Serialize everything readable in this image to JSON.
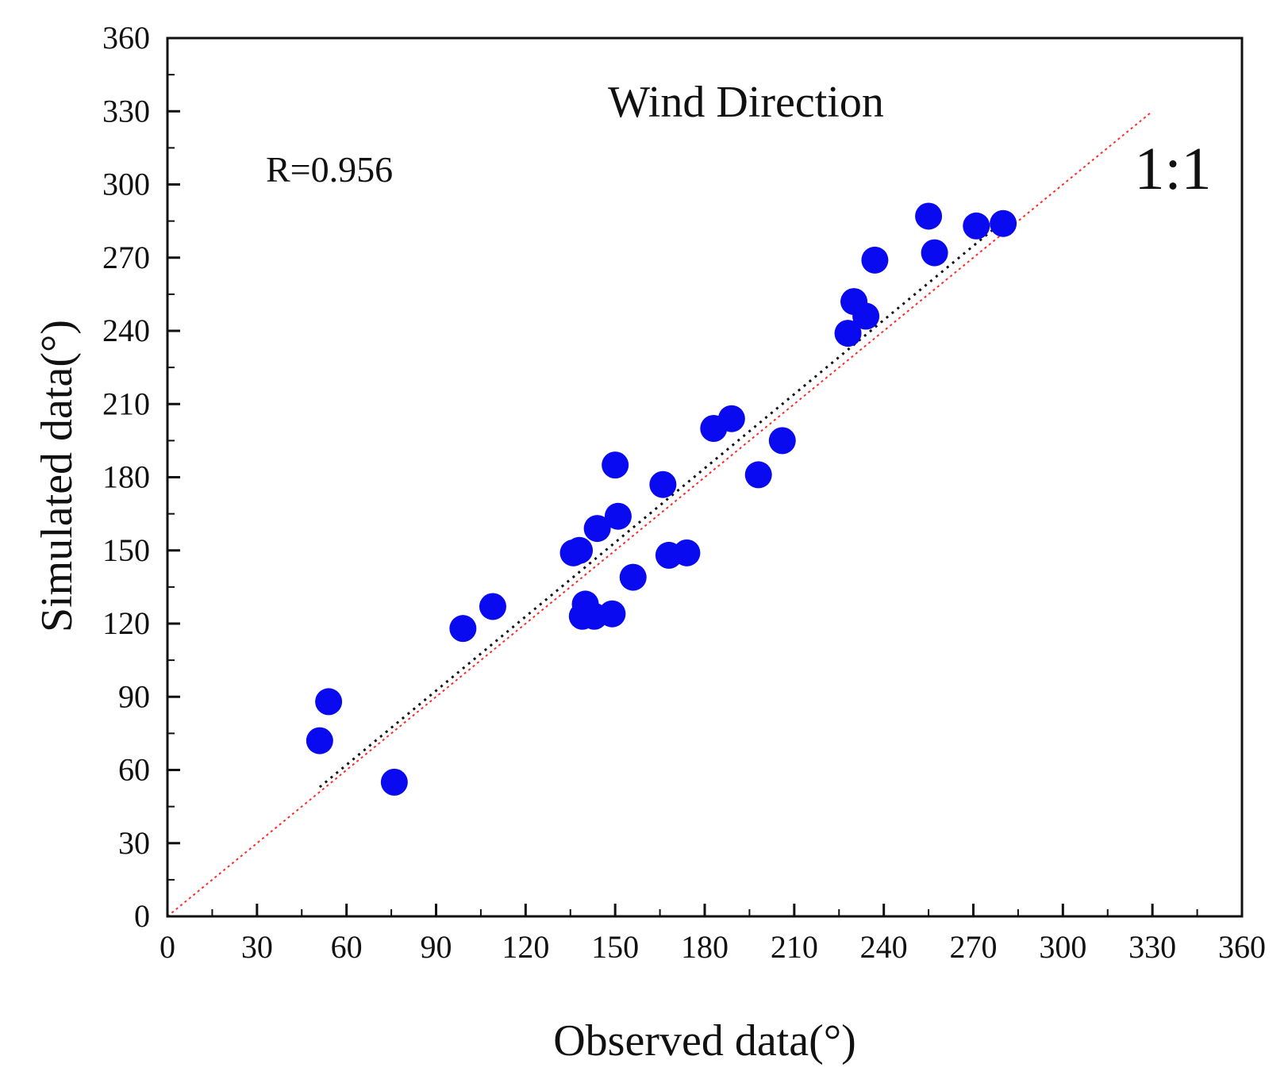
{
  "chart_data": {
    "type": "scatter",
    "title": "Wind Direction",
    "xlabel": "Observed data(°)",
    "ylabel": "Simulated data(°)",
    "xlim": [
      0,
      360
    ],
    "ylim": [
      0,
      360
    ],
    "xticks": [
      "0",
      "30",
      "60",
      "90",
      "120",
      "150",
      "180",
      "210",
      "240",
      "270",
      "300",
      "330",
      "360"
    ],
    "yticks": [
      "0",
      "30",
      "60",
      "90",
      "120",
      "150",
      "180",
      "210",
      "240",
      "270",
      "300",
      "330",
      "360"
    ],
    "grid": false,
    "annotations": {
      "r_value": "R=0.956",
      "ratio": "1:1"
    },
    "one_to_one_line": {
      "x": [
        0,
        330
      ],
      "y": [
        0,
        330
      ],
      "color": "#ff2a2a",
      "style": "dotted"
    },
    "fit_line": {
      "x": [
        51,
        283
      ],
      "y": [
        53,
        288
      ],
      "color": "#111111",
      "style": "dotted"
    },
    "series": [
      {
        "name": "points",
        "color": "#0a0af0",
        "points": [
          {
            "x": 51,
            "y": 72
          },
          {
            "x": 54,
            "y": 88
          },
          {
            "x": 76,
            "y": 55
          },
          {
            "x": 99,
            "y": 118
          },
          {
            "x": 109,
            "y": 127
          },
          {
            "x": 136,
            "y": 149
          },
          {
            "x": 138,
            "y": 150
          },
          {
            "x": 139,
            "y": 123
          },
          {
            "x": 140,
            "y": 128
          },
          {
            "x": 143,
            "y": 123
          },
          {
            "x": 144,
            "y": 159
          },
          {
            "x": 149,
            "y": 124
          },
          {
            "x": 150,
            "y": 185
          },
          {
            "x": 151,
            "y": 164
          },
          {
            "x": 156,
            "y": 139
          },
          {
            "x": 166,
            "y": 177
          },
          {
            "x": 168,
            "y": 148
          },
          {
            "x": 174,
            "y": 149
          },
          {
            "x": 183,
            "y": 200
          },
          {
            "x": 189,
            "y": 204
          },
          {
            "x": 198,
            "y": 181
          },
          {
            "x": 206,
            "y": 195
          },
          {
            "x": 228,
            "y": 239
          },
          {
            "x": 230,
            "y": 252
          },
          {
            "x": 234,
            "y": 246
          },
          {
            "x": 237,
            "y": 269
          },
          {
            "x": 255,
            "y": 287
          },
          {
            "x": 257,
            "y": 272
          },
          {
            "x": 271,
            "y": 283
          },
          {
            "x": 280,
            "y": 284
          }
        ]
      }
    ]
  }
}
